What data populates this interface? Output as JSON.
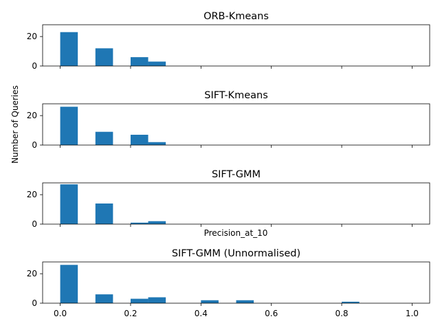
{
  "figure": {
    "ylabel": "Number of Queries",
    "xlabel": "Precision_at_10"
  },
  "chart_data": [
    {
      "type": "bar",
      "title": "ORB-Kmeans",
      "bar_width": 0.05,
      "x": [
        0.0,
        0.1,
        0.2,
        0.25
      ],
      "values": [
        23,
        12,
        6,
        3
      ],
      "xlim": [
        -0.05,
        1.05
      ],
      "ylim": [
        0,
        28
      ],
      "xticks": [
        0.0,
        0.2,
        0.4,
        0.6,
        0.8,
        1.0
      ],
      "yticks": [
        0,
        20
      ],
      "show_xticklabels": false,
      "color": "#1f77b4"
    },
    {
      "type": "bar",
      "title": "SIFT-Kmeans",
      "bar_width": 0.05,
      "x": [
        0.0,
        0.1,
        0.2,
        0.25
      ],
      "values": [
        26,
        9,
        7,
        2
      ],
      "xlim": [
        -0.05,
        1.05
      ],
      "ylim": [
        0,
        28
      ],
      "xticks": [
        0.0,
        0.2,
        0.4,
        0.6,
        0.8,
        1.0
      ],
      "yticks": [
        0,
        20
      ],
      "show_xticklabels": false,
      "color": "#1f77b4"
    },
    {
      "type": "bar",
      "title": "SIFT-GMM",
      "bar_width": 0.05,
      "x": [
        0.0,
        0.1,
        0.2,
        0.25
      ],
      "values": [
        27,
        14,
        1,
        2
      ],
      "xlim": [
        -0.05,
        1.05
      ],
      "ylim": [
        0,
        28
      ],
      "xticks": [
        0.0,
        0.2,
        0.4,
        0.6,
        0.8,
        1.0
      ],
      "yticks": [
        0,
        20
      ],
      "show_xticklabels": false,
      "color": "#1f77b4"
    },
    {
      "type": "bar",
      "title": "SIFT-GMM (Unnormalised)",
      "bar_width": 0.05,
      "x": [
        0.0,
        0.1,
        0.2,
        0.25,
        0.4,
        0.5,
        0.8
      ],
      "values": [
        26,
        6,
        3,
        4,
        2,
        2,
        1
      ],
      "xlim": [
        -0.05,
        1.05
      ],
      "ylim": [
        0,
        28
      ],
      "xticks": [
        0.0,
        0.2,
        0.4,
        0.6,
        0.8,
        1.0
      ],
      "xticklabels": [
        "0.0",
        "0.2",
        "0.4",
        "0.6",
        "0.8",
        "1.0"
      ],
      "yticks": [
        0,
        20
      ],
      "show_xticklabels": true,
      "color": "#1f77b4"
    }
  ]
}
